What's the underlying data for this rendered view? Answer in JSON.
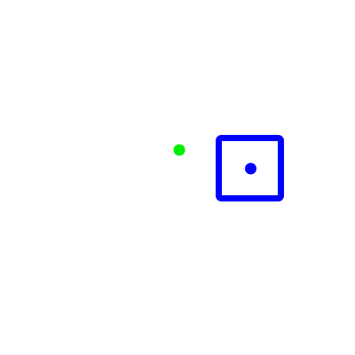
{
  "scene": {
    "background_color": "#ffffff",
    "agent": {
      "icon": "blue-dot-icon",
      "color": "#0000ff"
    },
    "target_box": {
      "icon": "square-outline-icon",
      "color": "#0000ff"
    },
    "item": {
      "icon": "green-dot-icon",
      "color": "#00ee00"
    }
  }
}
